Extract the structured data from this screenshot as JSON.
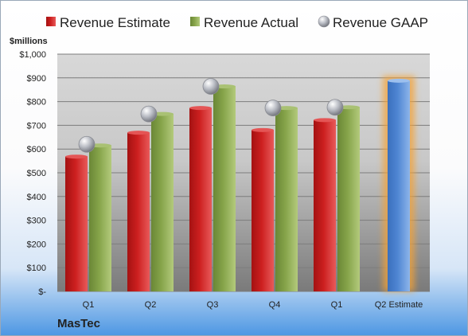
{
  "chart_data": {
    "type": "bar",
    "company": "MasTec",
    "ylabel": "$millions",
    "ylim": [
      0,
      1000
    ],
    "y_ticks": [
      "$-",
      "$100",
      "$200",
      "$300",
      "$400",
      "$500",
      "$600",
      "$700",
      "$800",
      "$900",
      "$1,000"
    ],
    "categories": [
      "Q1",
      "Q2",
      "Q3",
      "Q4",
      "Q1",
      "Q2 Estimate"
    ],
    "series": [
      {
        "name": "Revenue Estimate",
        "values": [
          568,
          669,
          773,
          680,
          722,
          null
        ]
      },
      {
        "name": "Revenue Actual",
        "values": [
          615,
          748,
          864,
          773,
          776,
          null
        ]
      },
      {
        "name": "Revenue GAAP",
        "values": [
          620,
          748,
          864,
          773,
          776,
          null
        ]
      }
    ],
    "next_estimate": {
      "category": "Q2 Estimate",
      "value": 888,
      "highlight": true
    },
    "legend_position": "top",
    "grid": true,
    "colors": {
      "estimate": "#cc1f1f",
      "actual": "#86a44a",
      "gaap": "#b9bcc4",
      "next_estimate": "#4f86d3",
      "glow": "#f4a236"
    }
  }
}
